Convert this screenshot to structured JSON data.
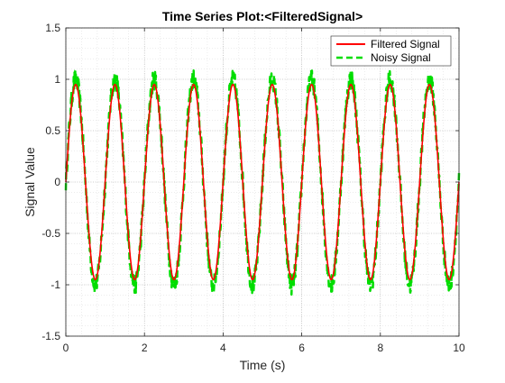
{
  "chart_data": {
    "type": "line",
    "title": "Time Series Plot:<FilteredSignal>",
    "xlabel": "Time (s)",
    "ylabel": "Signal Value",
    "xlim": [
      0,
      10
    ],
    "ylim": [
      -1.5,
      1.5
    ],
    "xticks": [
      0,
      2,
      4,
      6,
      8,
      10
    ],
    "yticks": [
      -1.5,
      -1,
      -0.5,
      0,
      0.5,
      1,
      1.5
    ],
    "xtick_labels": [
      "0",
      "2",
      "4",
      "6",
      "8",
      "10"
    ],
    "ytick_labels": [
      "-1.5",
      "-1",
      "-0.5",
      "0",
      "0.5",
      "1",
      "1.5"
    ],
    "grid": "major and minor, dotted",
    "legend_position": "top-right",
    "series": [
      {
        "name": "Filtered Signal",
        "color": "#ff0000",
        "style": "solid",
        "amplitude": 0.95,
        "frequency_hz": 1.0,
        "peak_times": [
          0.25,
          1.25,
          2.25,
          3.25,
          4.25,
          5.25,
          6.25,
          7.25,
          8.25,
          9.25
        ],
        "trough_times": [
          0.75,
          1.75,
          2.75,
          3.75,
          4.75,
          5.75,
          6.75,
          7.75,
          8.75,
          9.75
        ]
      },
      {
        "name": "Noisy Signal",
        "color": "#00dd00",
        "style": "dashed",
        "amplitude": 1.0,
        "frequency_hz": 1.0,
        "noise_amplitude": 0.1,
        "peak_times": [
          0.25,
          1.25,
          2.25,
          3.25,
          4.25,
          5.25,
          6.25,
          7.25,
          8.25,
          9.25
        ],
        "trough_times": [
          0.75,
          1.75,
          2.75,
          3.75,
          4.75,
          5.75,
          6.75,
          7.75,
          8.75,
          9.75
        ]
      }
    ]
  }
}
